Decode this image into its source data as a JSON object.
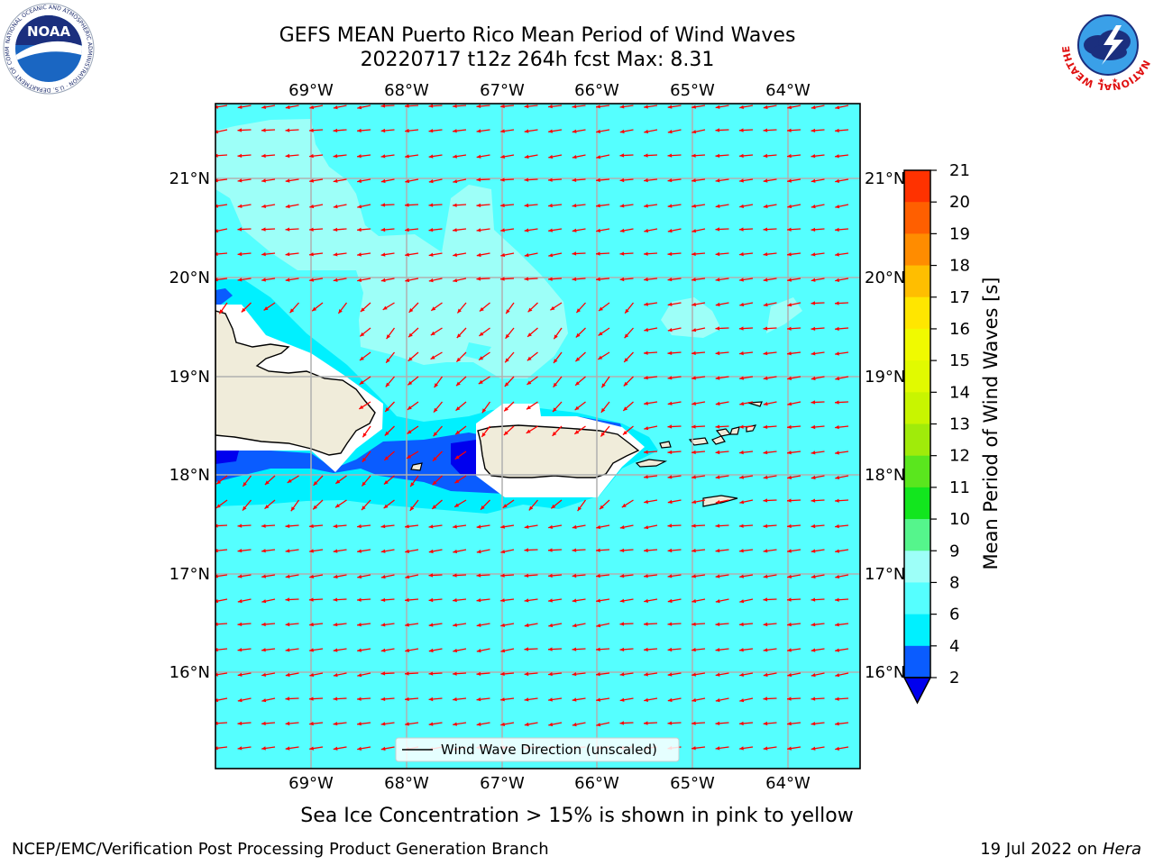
{
  "header": {
    "title_line1": "GEFS MEAN Puerto Rico Mean Period of Wind Waves",
    "title_line2": "20220717 t12z 264h fcst   Max: 8.31"
  },
  "logos": {
    "left": {
      "name": "noaa-logo",
      "text": "NOAA",
      "ring_text": "NATIONAL OCEANIC AND ATMOSPHERIC ADMINISTRATION · U.S. DEPARTMENT OF COMMERCE"
    },
    "right": {
      "name": "national-weather-service-logo",
      "ring_text": "NATIONAL WEATHER SERVICE"
    }
  },
  "map": {
    "lon_ticks": [
      "69°W",
      "68°W",
      "67°W",
      "66°W",
      "65°W",
      "64°W"
    ],
    "lat_ticks": [
      "21°N",
      "20°N",
      "19°N",
      "18°N",
      "17°N",
      "16°N"
    ],
    "legend_label": "Wind Wave Direction (unscaled)",
    "ocean_color": "#55ffff",
    "land_color": "#f0ecda",
    "arrow_color": "#ff0000",
    "wind_direction": "from east-northeast"
  },
  "colorbar": {
    "label": "Mean Period of Wind Waves [s]",
    "ticks": [
      "2",
      "4",
      "6",
      "8",
      "9",
      "10",
      "11",
      "12",
      "13",
      "14",
      "15",
      "16",
      "17",
      "18",
      "19",
      "20",
      "21"
    ],
    "colors": [
      "#0a5cff",
      "#00f0ff",
      "#55ffff",
      "#9dfff8",
      "#55f58c",
      "#12e61e",
      "#5ae61e",
      "#a0eb0a",
      "#c8f500",
      "#e1fa00",
      "#f0fa00",
      "#ffe600",
      "#ffbe00",
      "#ff8c00",
      "#ff5f00",
      "#ff3200",
      "#ff0000"
    ],
    "under_color": "#0000ee"
  },
  "footer": {
    "ice_note": "Sea Ice Concentration > 15% is shown in pink to yellow",
    "left": "NCEP/EMC/Verification Post Processing Product Generation Branch",
    "date": "19 Jul 2022 on ",
    "host": "Hera"
  }
}
